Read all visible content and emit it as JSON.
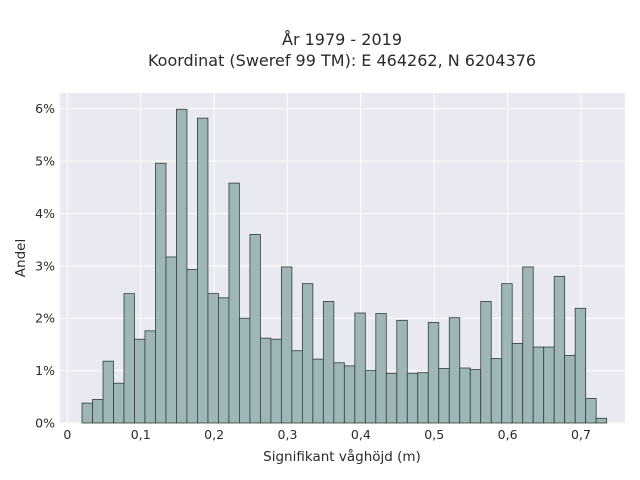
{
  "chart_data": {
    "type": "bar",
    "title_lines": [
      "År 1979 - 2019",
      "Koordinat (Sweref 99 TM): E 464262, N 6204376"
    ],
    "xlabel": "Signifikant våghöjd (m)",
    "ylabel": "Andel",
    "xlim": [
      -0.01,
      0.76
    ],
    "ylim": [
      0,
      6.3
    ],
    "x_ticks": [
      0,
      0.1,
      0.2,
      0.3,
      0.4,
      0.5,
      0.6,
      0.7
    ],
    "x_tick_labels": [
      "0",
      "0,1",
      "0,2",
      "0,3",
      "0,4",
      "0,5",
      "0,6",
      "0,7"
    ],
    "y_ticks": [
      0,
      1,
      2,
      3,
      4,
      5,
      6
    ],
    "y_tick_labels": [
      "0%",
      "1%",
      "2%",
      "3%",
      "4%",
      "5%",
      "6%"
    ],
    "bin_width": 0.0143,
    "bin_start": 0.02,
    "values": [
      0.38,
      0.45,
      1.18,
      0.76,
      2.47,
      1.6,
      1.76,
      4.96,
      3.17,
      5.99,
      2.93,
      5.82,
      2.47,
      2.39,
      4.58,
      2.0,
      3.6,
      1.62,
      1.6,
      2.98,
      1.38,
      2.66,
      1.22,
      2.32,
      1.15,
      1.09,
      2.1,
      1.0,
      2.09,
      0.95,
      1.96,
      0.95,
      0.96,
      1.92,
      1.04,
      2.01,
      1.05,
      1.02,
      2.32,
      1.23,
      2.66,
      1.52,
      2.98,
      1.45,
      1.45,
      2.8,
      1.29,
      2.19,
      0.47,
      0.09
    ],
    "grid": true,
    "colors": {
      "background": "#e9e9f1",
      "bar_fill": "#9eb6b6",
      "bar_edge": "#2f3d3d",
      "grid": "#ffffff"
    }
  }
}
